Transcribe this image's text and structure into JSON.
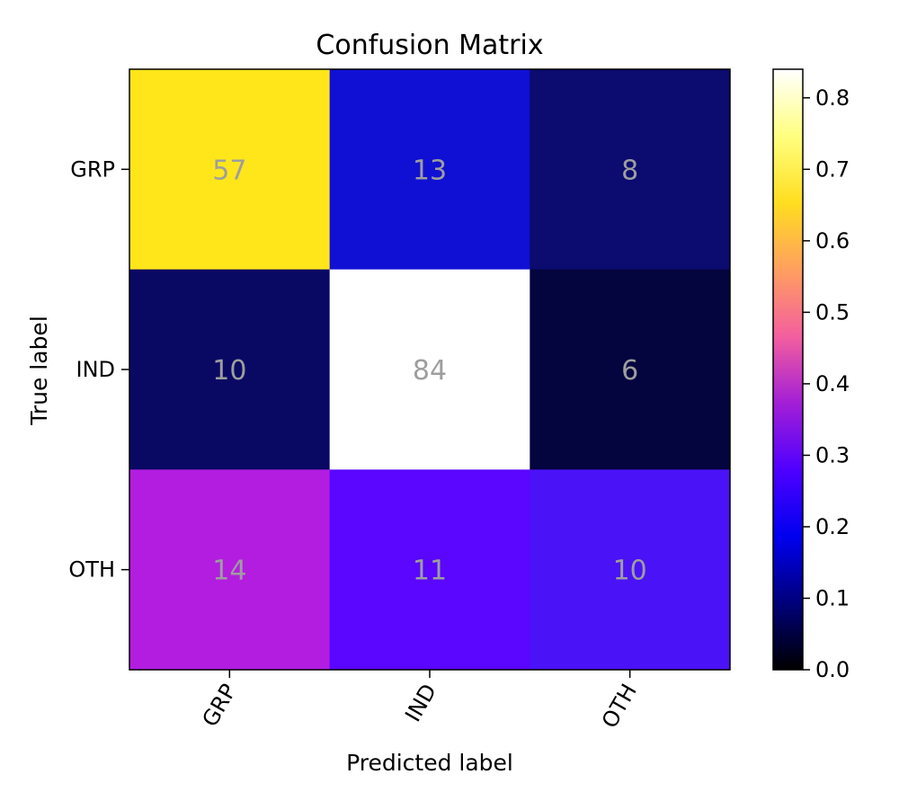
{
  "chart_data": {
    "type": "heatmap",
    "title": "Confusion Matrix",
    "xlabel": "Predicted label",
    "ylabel": "True label",
    "x_categories": [
      "GRP",
      "IND",
      "OTH"
    ],
    "y_categories": [
      "GRP",
      "IND",
      "OTH"
    ],
    "values": [
      [
        57,
        13,
        8
      ],
      [
        10,
        84,
        6
      ],
      [
        14,
        11,
        10
      ]
    ],
    "cell_colors": [
      [
        "#ffe61a",
        "#1010d4",
        "#0b0b70"
      ],
      [
        "#090964",
        "#ffffff",
        "#04043e"
      ],
      [
        "#b21de0",
        "#5a06ff",
        "#4a12f6"
      ]
    ],
    "colorbar": {
      "min": 0.0,
      "max": 0.84,
      "ticks": [
        0.0,
        0.1,
        0.2,
        0.3,
        0.4,
        0.5,
        0.6,
        0.7,
        0.8
      ],
      "tick_labels": [
        "0.0",
        "0.1",
        "0.2",
        "0.3",
        "0.4",
        "0.5",
        "0.6",
        "0.7",
        "0.8"
      ],
      "colormap": "gnuplot2",
      "gradient_stops": [
        "#000000",
        "#00007a",
        "#0000f0",
        "#4f00ff",
        "#a31fd6",
        "#f45f9e",
        "#ff9f5f",
        "#ffde1f",
        "#ffff80",
        "#ffffff"
      ]
    },
    "text_color": "#9e9e9e",
    "grid": false
  }
}
